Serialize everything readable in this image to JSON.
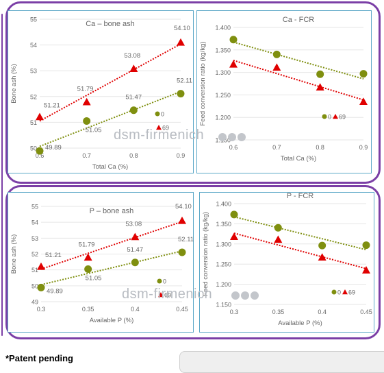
{
  "watermark": "dsm-firmenich",
  "footnote": "*Patent pending",
  "colors": {
    "series0": "#7f8f0f",
    "series69": "#e00000",
    "frame": "#7b3fa6",
    "panel_border": "#5aa7c7",
    "grid": "#e6e6e6",
    "axis_text": "#666666"
  },
  "chart_data": [
    {
      "id": "ca-boneash",
      "type": "scatter",
      "title": "Ca – bone ash",
      "xlabel": "Total Ca (%)",
      "ylabel": "Bone ash (%)",
      "xlim": [
        0.6,
        0.9
      ],
      "ylim": [
        50,
        55
      ],
      "xticks": [
        0.6,
        0.7,
        0.8,
        0.9
      ],
      "xtick_labels": [
        "0.6",
        "0.7",
        "0.8",
        "0.9"
      ],
      "yticks": [
        50,
        51,
        52,
        53,
        54,
        55
      ],
      "ytick_labels": [
        "50",
        "51",
        "52",
        "53",
        "54",
        "55"
      ],
      "grid": true,
      "legend": "right, lower",
      "series": [
        {
          "name": "0",
          "marker": "circle",
          "x": [
            0.6,
            0.7,
            0.8,
            0.9
          ],
          "y": [
            49.89,
            51.05,
            51.47,
            52.11
          ],
          "labels": [
            "49.89",
            "51.05",
            "51.47",
            "52.11"
          ]
        },
        {
          "name": "69",
          "marker": "triangle",
          "x": [
            0.6,
            0.7,
            0.8,
            0.9
          ],
          "y": [
            51.21,
            51.79,
            53.08,
            54.1
          ],
          "labels": [
            "51.21",
            "51.79",
            "53.08",
            "54.10"
          ]
        }
      ]
    },
    {
      "id": "ca-fcr",
      "type": "scatter",
      "title": "Ca - FCR",
      "xlabel": "Total Ca (%)",
      "ylabel": "Feed conversion ratio (kg/kg)",
      "xlim": [
        0.6,
        0.9
      ],
      "ylim": [
        1.15,
        1.4
      ],
      "xticks": [
        0.6,
        0.7,
        0.8,
        0.9
      ],
      "xtick_labels": [
        "0.6",
        "0.7",
        "0.8",
        "0.9"
      ],
      "yticks": [
        1.15,
        1.2,
        1.25,
        1.3,
        1.35,
        1.4
      ],
      "ytick_labels": [
        "1.150",
        "1.200",
        "1.250",
        "1.300",
        "1.350",
        "1.400"
      ],
      "grid": true,
      "legend": "bottom-right",
      "series": [
        {
          "name": "0",
          "marker": "circle",
          "x": [
            0.6,
            0.7,
            0.8,
            0.9
          ],
          "y": [
            1.373,
            1.34,
            1.296,
            1.297
          ]
        },
        {
          "name": "69",
          "marker": "triangle",
          "x": [
            0.6,
            0.7,
            0.8,
            0.9
          ],
          "y": [
            1.318,
            1.311,
            1.267,
            1.235
          ]
        }
      ]
    },
    {
      "id": "p-boneash",
      "type": "scatter",
      "title": "P – bone ash",
      "xlabel": "Available P (%)",
      "ylabel": "Bone ash (%)",
      "xlim": [
        0.3,
        0.45
      ],
      "ylim": [
        49,
        55
      ],
      "xticks": [
        0.3,
        0.35,
        0.4,
        0.45
      ],
      "xtick_labels": [
        "0.3",
        "0.35",
        "0.4",
        "0.45"
      ],
      "yticks": [
        49,
        50,
        51,
        52,
        53,
        54,
        55
      ],
      "ytick_labels": [
        "49",
        "50",
        "51",
        "52",
        "53",
        "54",
        "55"
      ],
      "grid": true,
      "legend": "right, lower",
      "series": [
        {
          "name": "0",
          "marker": "circle",
          "x": [
            0.3,
            0.35,
            0.4,
            0.45
          ],
          "y": [
            49.89,
            51.05,
            51.47,
            52.11
          ],
          "labels": [
            "49.89",
            "51.05",
            "51.47",
            "52.11"
          ]
        },
        {
          "name": "69",
          "marker": "triangle",
          "x": [
            0.3,
            0.35,
            0.4,
            0.45
          ],
          "y": [
            51.21,
            51.79,
            53.08,
            54.1
          ],
          "labels": [
            "51.21",
            "51.79",
            "53.08",
            "54.10"
          ]
        }
      ]
    },
    {
      "id": "p-fcr",
      "type": "scatter",
      "title": "P - FCR",
      "xlabel": "Available P (%)",
      "ylabel": "Feed conversion ratio (kg/kg)",
      "xlim": [
        0.3,
        0.45
      ],
      "ylim": [
        1.15,
        1.4
      ],
      "xticks": [
        0.3,
        0.35,
        0.4,
        0.45
      ],
      "xtick_labels": [
        "0.3",
        "0.35",
        "0.4",
        "0.45"
      ],
      "yticks": [
        1.15,
        1.2,
        1.25,
        1.3,
        1.35,
        1.4
      ],
      "ytick_labels": [
        "1.150",
        "1.200",
        "1.250",
        "1.300",
        "1.350",
        "1.400"
      ],
      "grid": true,
      "legend": "bottom-right",
      "series": [
        {
          "name": "0",
          "marker": "circle",
          "x": [
            0.3,
            0.35,
            0.4,
            0.45
          ],
          "y": [
            1.373,
            1.34,
            1.296,
            1.297
          ]
        },
        {
          "name": "69",
          "marker": "triangle",
          "x": [
            0.3,
            0.35,
            0.4,
            0.45
          ],
          "y": [
            1.318,
            1.311,
            1.267,
            1.235
          ]
        }
      ]
    }
  ]
}
